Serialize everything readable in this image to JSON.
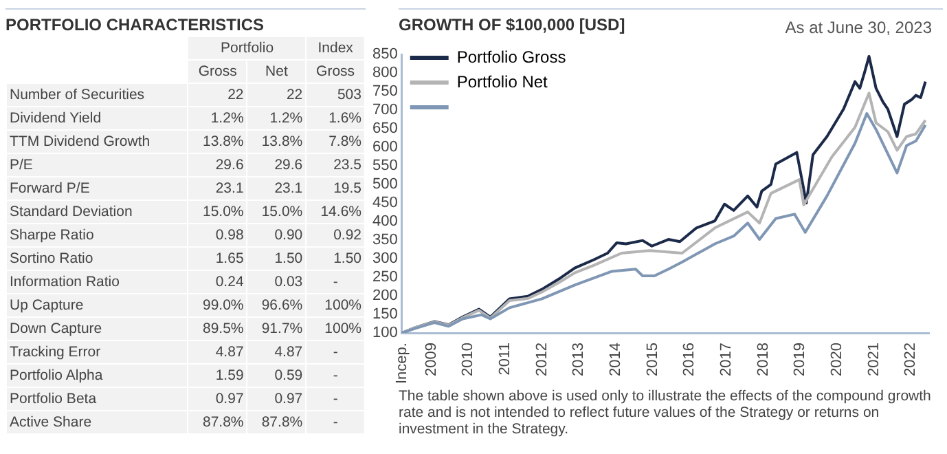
{
  "chart_data": [
    {
      "type": "other",
      "title": "PORTFOLIO CHARACTERISTICS",
      "annotations": [
        "Portfolio",
        "Index",
        "Gross",
        "Net",
        "Gross",
        "Number of Securities",
        "22",
        "22",
        "503",
        "Dividend Yield",
        "1.2%",
        "1.2%",
        "1.6%",
        "TTM Dividend Growth",
        "13.8%",
        "13.8%",
        "7.8%",
        "P/E",
        "29.6",
        "29.6",
        "23.5",
        "Forward P/E",
        "23.1",
        "23.1",
        "19.5",
        "Standard Deviation",
        "15.0%",
        "15.0%",
        "14.6%",
        "Sharpe Ratio",
        "0.98",
        "0.90",
        "0.92",
        "Sortino Ratio",
        "1.65",
        "1.50",
        "1.50",
        "Information Ratio",
        "0.24",
        "0.03",
        "-",
        "Up Capture",
        "99.0%",
        "96.6%",
        "100%",
        "Down Capture",
        "89.5%",
        "91.7%",
        "100%",
        "Tracking Error",
        "4.87",
        "4.87",
        "-",
        "Portfolio Alpha",
        "1.59",
        "0.59",
        "-",
        "Portfolio Beta",
        "0.97",
        "0.97",
        "-",
        "Active Share",
        "87.8%",
        "87.8%",
        "-"
      ]
    },
    {
      "type": "line",
      "title": "GROWTH OF $100,000 [USD]",
      "subtitle": "As at June 30, 2023",
      "annotations": [
        "The table shown above is used only to illustrate the effects of the compound growth rate and is not intended to reflect future values of the Strategy or returns on investment in the Strategy."
      ],
      "xlim": [
        2008.2,
        2022.5
      ],
      "xticks": [
        {
          "value": 2008.2,
          "label": "Incep."
        },
        2009,
        2010,
        2011,
        2012,
        2013,
        2014,
        2015,
        2016,
        2017,
        2018,
        2019,
        2020,
        2021,
        2022
      ],
      "ylim": [
        100,
        850
      ],
      "yticks": [
        100,
        150,
        200,
        250,
        300,
        350,
        400,
        450,
        500,
        550,
        600,
        650,
        700,
        750,
        800,
        850
      ],
      "legend": "top left",
      "grid": false,
      "series": [
        {
          "name": "Portfolio Gross",
          "color": "#1c2a4a",
          "x": [
            2008.2,
            2008.58,
            2009.09,
            2009.47,
            2009.85,
            2010.29,
            2010.6,
            2011.12,
            2011.62,
            2011.99,
            2012.5,
            2012.89,
            2013.4,
            2013.78,
            2014.03,
            2014.28,
            2014.73,
            2014.98,
            2015.43,
            2015.74,
            2016.19,
            2016.69,
            2016.95,
            2017.2,
            2017.58,
            2017.83,
            2017.96,
            2018.21,
            2018.34,
            2018.91,
            2019.17,
            2019.35,
            2019.73,
            2020.18,
            2020.49,
            2020.62,
            2020.75,
            2020.87,
            2021.06,
            2021.25,
            2021.38,
            2021.63,
            2021.83,
            2022.02,
            2022.14,
            2022.27,
            2022.4
          ],
          "values": [
            100,
            115,
            131,
            122,
            143,
            164,
            143,
            192,
            199,
            217,
            248,
            275,
            297,
            315,
            343,
            340,
            349,
            334,
            352,
            346,
            383,
            402,
            447,
            430,
            469,
            439,
            482,
            500,
            555,
            586,
            450,
            580,
            629,
            703,
            777,
            759,
            802,
            845,
            759,
            722,
            703,
            629,
            716,
            728,
            740,
            734,
            777
          ]
        },
        {
          "name": "Portfolio Net",
          "color": "#b4b4b4",
          "x": [
            2008.2,
            2008.58,
            2009.09,
            2009.47,
            2009.85,
            2010.29,
            2010.6,
            2011.12,
            2011.62,
            2011.99,
            2012.5,
            2012.89,
            2013.4,
            2014.16,
            2014.92,
            2015.8,
            2016.69,
            2017.58,
            2017.9,
            2018.21,
            2018.98,
            2019.1,
            2019.86,
            2020.49,
            2020.87,
            2021.06,
            2021.38,
            2021.63,
            2021.89,
            2022.14,
            2022.4
          ],
          "values": [
            100,
            115,
            130,
            121,
            141,
            161,
            140,
            187,
            193,
            210,
            238,
            262,
            282,
            315,
            322,
            315,
            383,
            426,
            396,
            476,
            513,
            445,
            574,
            654,
            746,
            666,
            642,
            592,
            629,
            636,
            673
          ]
        },
        {
          "color": "#7f97b4",
          "x": [
            2008.2,
            2008.58,
            2009.09,
            2009.47,
            2009.85,
            2010.36,
            2010.6,
            2011.12,
            2012.0,
            2012.89,
            2013.9,
            2014.54,
            2014.73,
            2015.05,
            2015.43,
            2015.8,
            2016.69,
            2017.2,
            2017.58,
            2017.9,
            2018.34,
            2018.85,
            2019.14,
            2019.73,
            2020.49,
            2020.81,
            2021.06,
            2021.63,
            2021.89,
            2022.14,
            2022.4
          ],
          "values": [
            100,
            113,
            128,
            118,
            138,
            149,
            138,
            168,
            192,
            229,
            266,
            272,
            254,
            254,
            272,
            291,
            340,
            361,
            396,
            352,
            408,
            420,
            371,
            469,
            611,
            691,
            648,
            531,
            605,
            617,
            660
          ]
        }
      ]
    }
  ]
}
